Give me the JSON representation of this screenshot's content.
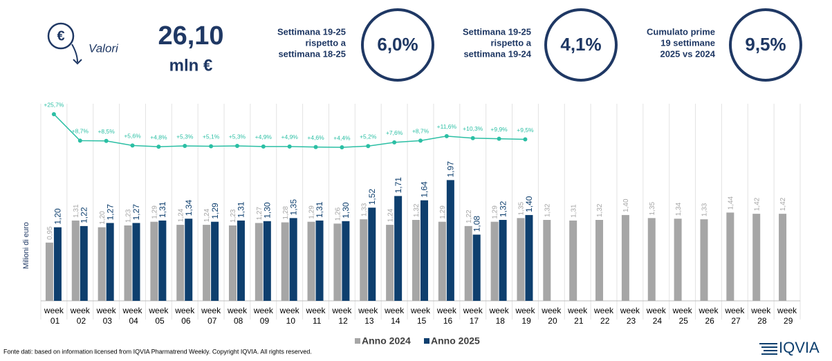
{
  "header": {
    "icon_symbol": "€",
    "icon_label": "Valori",
    "total_value": "26,10",
    "total_unit": "mln €",
    "kpis": [
      {
        "label_lines": [
          "Settimana 19-25",
          "rispetto a",
          "settimana 18-25"
        ],
        "value": "6,0%"
      },
      {
        "label_lines": [
          "Settimana 19-25",
          "rispetto a",
          "settimana 19-24"
        ],
        "value": "4,1%"
      },
      {
        "label_lines": [
          "Cumulato prime",
          "19 settimane",
          "2025 vs 2024"
        ],
        "value": "9,5%"
      }
    ]
  },
  "chart_data": {
    "type": "bar",
    "y_label": "Milioni di euro",
    "categories": [
      "week 01",
      "week 02",
      "week 03",
      "week 04",
      "week 05",
      "week 06",
      "week 07",
      "week 08",
      "week 09",
      "week 10",
      "week 11",
      "week 12",
      "week 13",
      "week 14",
      "week 15",
      "week 16",
      "week 17",
      "week 18",
      "week 19",
      "week 20",
      "week 21",
      "week 22",
      "week 23",
      "week 24",
      "week 25",
      "week 26",
      "week 27",
      "week 28",
      "week 29"
    ],
    "ylim": [
      0,
      2.2
    ],
    "y2lim": [
      -60,
      30
    ],
    "series": [
      {
        "name": "Anno 2024",
        "color": "#a6a6a6",
        "values": [
          0.95,
          1.31,
          1.2,
          1.23,
          1.29,
          1.24,
          1.24,
          1.23,
          1.27,
          1.28,
          1.29,
          1.26,
          1.33,
          1.24,
          1.32,
          1.29,
          1.22,
          1.29,
          1.35,
          1.32,
          1.31,
          1.32,
          1.4,
          1.35,
          1.34,
          1.33,
          1.44,
          1.42,
          1.42
        ],
        "value_labels": [
          "0,95",
          "1,31",
          "1,20",
          "1,23",
          "1,29",
          "1,24",
          "1,24",
          "1,23",
          "1,27",
          "1,28",
          "1,29",
          "1,26",
          "1,33",
          "1,24",
          "1,32",
          "1,29",
          "1,22",
          "1,29",
          "1,35",
          "1,32",
          "1,31",
          "1,32",
          "1,40",
          "1,35",
          "1,34",
          "1,33",
          "1,44",
          "1,42",
          "1,42"
        ]
      },
      {
        "name": "Anno 2025",
        "color": "#0e3f6e",
        "values": [
          1.2,
          1.22,
          1.27,
          1.27,
          1.31,
          1.34,
          1.29,
          1.31,
          1.3,
          1.35,
          1.31,
          1.3,
          1.52,
          1.71,
          1.64,
          1.97,
          1.08,
          1.32,
          1.4,
          null,
          null,
          null,
          null,
          null,
          null,
          null,
          null,
          null,
          null
        ],
        "value_labels": [
          "1,20",
          "1,22",
          "1,27",
          "1,27",
          "1,31",
          "1,34",
          "1,29",
          "1,31",
          "1,30",
          "1,35",
          "1,31",
          "1,30",
          "1,52",
          "1,71",
          "1,64",
          "1,97",
          "1,08",
          "1,32",
          "1,40",
          null,
          null,
          null,
          null,
          null,
          null,
          null,
          null,
          null,
          null
        ]
      },
      {
        "type": "line",
        "axis": "y2",
        "color": "#2bbfa4",
        "values": [
          25.7,
          8.7,
          8.5,
          5.6,
          4.8,
          5.3,
          5.1,
          5.3,
          4.9,
          4.9,
          4.6,
          4.4,
          5.2,
          7.6,
          8.7,
          11.6,
          10.3,
          9.9,
          9.5,
          null,
          null,
          null,
          null,
          null,
          null,
          null,
          null,
          null,
          null
        ],
        "value_labels": [
          "+25,7%",
          "+8,7%",
          "+8,5%",
          "+5,6%",
          "+4,8%",
          "+5,3%",
          "+5,1%",
          "+5,3%",
          "+4,9%",
          "+4,9%",
          "+4,6%",
          "+4,4%",
          "+5,2%",
          "+7,6%",
          "+8,7%",
          "+11,6%",
          "+10,3%",
          "+9,9%",
          "+9,5%",
          null,
          null,
          null,
          null,
          null,
          null,
          null,
          null,
          null,
          null
        ]
      }
    ]
  },
  "footer": {
    "source": "Fonte dati: based on information licensed from IQVIA Pharmatrend Weekly. Copyright IQVIA. All rights reserved.",
    "logo": "IQVIA"
  }
}
